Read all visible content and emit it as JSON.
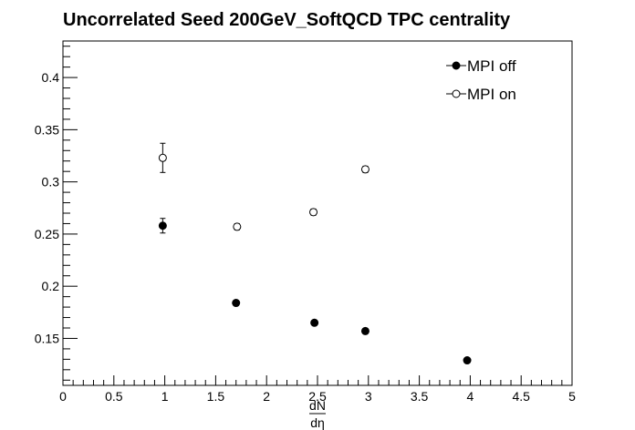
{
  "chart_data": {
    "type": "scatter",
    "title": "Uncorrelated Seed 200GeV_SoftQCD TPC centrality",
    "xlabel_numerator": "dN",
    "xlabel_denominator": "dη",
    "ylabel": "",
    "xlim": [
      0,
      5
    ],
    "ylim": [
      0.105,
      0.435
    ],
    "x_ticks": [
      "0",
      "0.5",
      "1",
      "1.5",
      "2",
      "2.5",
      "3",
      "3.5",
      "4",
      "4.5",
      "5"
    ],
    "y_ticks": [
      "0.15",
      "0.2",
      "0.25",
      "0.3",
      "0.35",
      "0.4"
    ],
    "grid": false,
    "legend_position": "top-right",
    "series": [
      {
        "name": "MPI off",
        "marker": "filled-circle",
        "color": "#000000",
        "points": [
          {
            "x": 0.98,
            "y": 0.258,
            "err": 0.007
          },
          {
            "x": 1.7,
            "y": 0.184,
            "err": 0.002
          },
          {
            "x": 2.47,
            "y": 0.165,
            "err": 0.002
          },
          {
            "x": 2.97,
            "y": 0.157,
            "err": 0.002
          },
          {
            "x": 3.97,
            "y": 0.129,
            "err": 0.002
          }
        ]
      },
      {
        "name": "MPI on",
        "marker": "open-circle",
        "color": "#000000",
        "points": [
          {
            "x": 0.98,
            "y": 0.323,
            "err": 0.014
          },
          {
            "x": 1.71,
            "y": 0.257,
            "err": 0.003
          },
          {
            "x": 2.46,
            "y": 0.271,
            "err": 0.003
          },
          {
            "x": 2.97,
            "y": 0.312,
            "err": 0.003
          }
        ]
      }
    ]
  }
}
